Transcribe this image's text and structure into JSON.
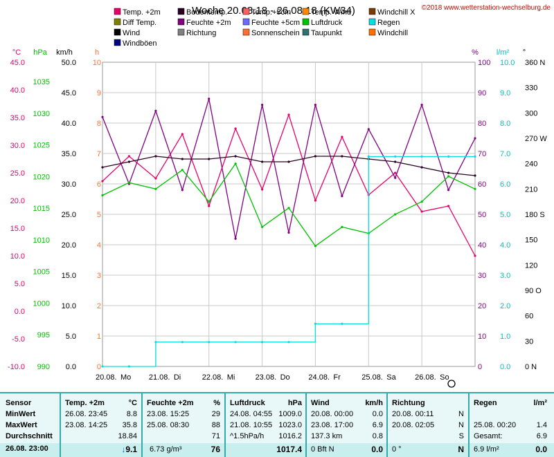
{
  "title": "Woche 20.08.18 - 26.08.18 (KW34)",
  "copyright": "©2018 www.wetterstation-wechselburg.de",
  "colors": {
    "grid": "#c8c8c8"
  },
  "legend": [
    {
      "label": "Temp. +2m",
      "color": "#e8006a"
    },
    {
      "label": "Bodentemp.",
      "color": "#2a0022"
    },
    {
      "label": "Temp.+5cm",
      "color": "#ff6060"
    },
    {
      "label": "Temp. Wind",
      "color": "#ff8800"
    },
    {
      "label": "Windchill X",
      "color": "#7a3a00"
    },
    {
      "label": "Diff Temp.",
      "color": "#808000"
    },
    {
      "label": "Feuchte +2m",
      "color": "#800080"
    },
    {
      "label": "Feuchte +5cm",
      "color": "#6a6aff"
    },
    {
      "label": "Luftdruck",
      "color": "#00c000"
    },
    {
      "label": "Regen",
      "color": "#00e0e0"
    },
    {
      "label": "Wind",
      "color": "#000000"
    },
    {
      "label": "Richtung",
      "color": "#808080"
    },
    {
      "label": "Sonnenschein",
      "color": "#ff7030"
    },
    {
      "label": "Taupunkt",
      "color": "#307070"
    },
    {
      "label": "Windchill",
      "color": "#ff7000"
    },
    {
      "label": "Windböen",
      "color": "#000080"
    }
  ],
  "axes": {
    "temp": {
      "unit": "°C",
      "color": "#e8006a",
      "ticks": [
        "45.0",
        "40.0",
        "35.0",
        "30.0",
        "25.0",
        "20.0",
        "15.0",
        "10.0",
        "5.0",
        "0.0",
        "-5.0",
        "-10.0"
      ]
    },
    "pressure": {
      "unit": "hPa",
      "color": "#00c000",
      "ticks": [
        "1035",
        "1030",
        "1025",
        "1020",
        "1015",
        "1010",
        "1005",
        "1000",
        "995",
        "990"
      ]
    },
    "wind": {
      "unit": "km/h",
      "color": "#000000",
      "ticks": [
        "50.0",
        "45.0",
        "40.0",
        "35.0",
        "30.0",
        "25.0",
        "20.0",
        "15.0",
        "10.0",
        "5.0",
        "0.0"
      ]
    },
    "sun": {
      "unit": "h",
      "color": "#ff7030",
      "ticks": [
        "10",
        "9",
        "8",
        "7",
        "6",
        "5",
        "4",
        "3",
        "2",
        "1",
        "0"
      ]
    },
    "humidity": {
      "unit": "%",
      "color": "#800080",
      "ticks": [
        "100",
        "90",
        "80",
        "70",
        "60",
        "50",
        "40",
        "30",
        "20",
        "10",
        "0"
      ]
    },
    "rain": {
      "unit": "l/m²",
      "color": "#00c0c0",
      "ticks": [
        "10.0",
        "9.0",
        "8.0",
        "7.0",
        "6.0",
        "5.0",
        "4.0",
        "3.0",
        "2.0",
        "1.0",
        "0.0"
      ]
    },
    "direction": {
      "unit": "°",
      "color": "#000000",
      "ticks": [
        "360 N",
        "330",
        "300",
        "270 W",
        "240",
        "210",
        "180 S",
        "150",
        "120",
        "90 O",
        "60",
        "30",
        "0 N"
      ]
    }
  },
  "x_labels": [
    "20.08.",
    "Mo",
    "21.08.",
    "Di",
    "22.08.",
    "Mi",
    "23.08.",
    "Do",
    "24.08.",
    "Fr",
    "25.08.",
    "Sa",
    "26.08.",
    "So"
  ],
  "chart_data": {
    "type": "line",
    "x": [
      "20.08. 00:00",
      "20.08. 12:00",
      "21.08. 00:00",
      "21.08. 12:00",
      "22.08. 00:00",
      "22.08. 12:00",
      "23.08. 00:00",
      "23.08. 12:00",
      "24.08. 00:00",
      "24.08. 12:00",
      "25.08. 00:00",
      "25.08. 12:00",
      "26.08. 00:00",
      "26.08. 12:00",
      "26.08. 23:00"
    ],
    "series": [
      {
        "name": "Temp. +2m",
        "values": [
          23.5,
          28,
          24,
          32,
          19,
          33,
          22,
          35.5,
          20,
          31.5,
          21,
          25,
          18,
          19,
          10
        ]
      },
      {
        "name": "Feuchte +2m",
        "values": [
          82,
          60,
          84,
          58,
          88,
          42,
          86,
          44,
          86,
          56,
          78,
          62,
          86,
          58,
          75
        ]
      },
      {
        "name": "Luftdruck",
        "values": [
          1017,
          1019,
          1018,
          1021,
          1016,
          1022,
          1012,
          1015,
          1009,
          1012,
          1011,
          1014,
          1016,
          1020,
          1018
        ]
      },
      {
        "name": "Bodentemp.",
        "values": [
          26,
          27,
          28,
          27.5,
          27.5,
          28,
          27,
          27,
          28,
          28,
          27.5,
          27,
          26,
          25,
          24.5
        ]
      },
      {
        "name": "Regen",
        "values": [
          0,
          0,
          0.8,
          0.8,
          0.8,
          0.8,
          0.8,
          0.8,
          1.4,
          1.4,
          6.9,
          6.9,
          6.9,
          6.9,
          6.9
        ]
      }
    ],
    "ylim_temp": [
      -10,
      45
    ],
    "ylim_pressure": [
      990,
      1038
    ],
    "ylim_humidity": [
      0,
      100
    ],
    "ylim_rain": [
      0,
      10
    ]
  },
  "table": {
    "sensor": {
      "h": "Sensor",
      "rows": [
        "MinWert",
        "MaxWert",
        "Durchschnitt"
      ],
      "foot": "26.08. 23:00"
    },
    "temp": {
      "h1": "Temp. +2m",
      "h2": "°C",
      "rows": [
        [
          "26.08. 23:45",
          "8.8"
        ],
        [
          "23.08. 14:25",
          "35.8"
        ],
        [
          "",
          "18.84"
        ]
      ],
      "foot": "9.1"
    },
    "feuchte": {
      "h1": "Feuchte +2m",
      "h2": "%",
      "rows": [
        [
          "23.08. 15:25",
          "29"
        ],
        [
          "25.08. 08:30",
          "88"
        ],
        [
          "",
          "71"
        ]
      ],
      "foot_l": "6.73 g/m³",
      "foot": "76"
    },
    "druck": {
      "h1": "Luftdruck",
      "h2": "hPa",
      "rows": [
        [
          "24.08. 04:55",
          "1009.0"
        ],
        [
          "21.08. 10:55",
          "1023.0"
        ],
        [
          "^1.5hPa/h",
          "1016.2"
        ]
      ],
      "foot": "1017.4"
    },
    "wind": {
      "h1": "Wind",
      "h2": "km/h",
      "rows": [
        [
          "20.08. 00:00",
          "0.0"
        ],
        [
          "23.08. 17:00",
          "6.9"
        ],
        [
          "137.3 km",
          "0.8"
        ]
      ],
      "foot_l": "0 Bft N",
      "foot": "0.0"
    },
    "richtung": {
      "h1": "Richtung",
      "rows": [
        [
          "20.08. 00:11",
          "N"
        ],
        [
          "20.08. 02:05",
          "N"
        ],
        [
          "",
          "S"
        ]
      ],
      "foot_l": "0 °",
      "foot": "N"
    },
    "regen": {
      "h1": "Regen",
      "h2": "l/m²",
      "rows": [
        [
          "",
          ""
        ],
        [
          "25.08. 00:20",
          "1.4"
        ],
        [
          "Gesamt:",
          "6.9"
        ]
      ],
      "foot_l": "6.9 l/m²",
      "foot": "0.0"
    }
  }
}
